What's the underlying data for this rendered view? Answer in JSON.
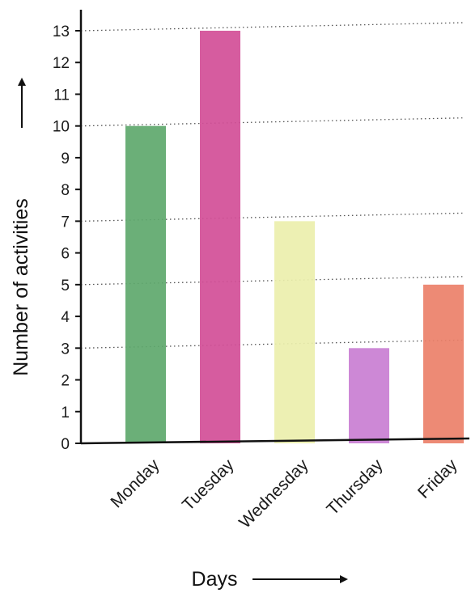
{
  "chart_data": {
    "type": "bar",
    "categories": [
      "Monday",
      "Tuesday",
      "Wednesday",
      "Thursday",
      "Friday"
    ],
    "values": [
      10,
      13,
      7,
      3,
      5
    ],
    "colors": [
      "#5ea86c",
      "#d24e97",
      "#ecefac",
      "#c97ed2",
      "#ec8069"
    ],
    "xlabel": "Days",
    "ylabel": "Number of activities",
    "ylim": [
      0,
      13
    ],
    "yticks": [
      0,
      1,
      2,
      3,
      4,
      5,
      6,
      7,
      8,
      9,
      10,
      11,
      12,
      13
    ],
    "grid": "dotted reference lines at bar heights"
  }
}
